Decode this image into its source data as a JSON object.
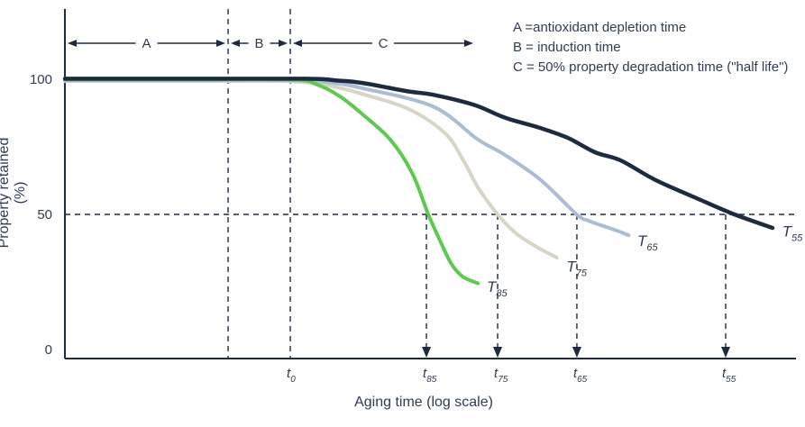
{
  "colors": {
    "ink": "#1d2b40",
    "text": "#2e3c55",
    "green": "#5ec94f",
    "beige": "#d9d5c6",
    "blue": "#aabdd5",
    "background": "#ffffff"
  },
  "chart": {
    "type": "line",
    "title": "",
    "xlabel": "Aging time (log scale)",
    "ylabel": "Property retained (%)",
    "x_scale": "log (qualitative, unlabeled)",
    "ylim": [
      0,
      110
    ],
    "grid": "off",
    "half_life_pct": 50,
    "y_ticks": [
      {
        "label": "100",
        "pct": 100
      },
      {
        "label": "50",
        "pct": 50
      },
      {
        "label": "0",
        "pct": 0
      }
    ],
    "x_ticks": [
      {
        "base": "t",
        "sub": "0",
        "x": 0.3083,
        "drop_arrow": false
      },
      {
        "base": "t",
        "sub": "85",
        "x": 0.4945,
        "drop_arrow": true
      },
      {
        "base": "t",
        "sub": "75",
        "x": 0.5919,
        "drop_arrow": true
      },
      {
        "base": "t",
        "sub": "65",
        "x": 0.7003,
        "drop_arrow": true
      },
      {
        "base": "t",
        "sub": "55",
        "x": 0.9038,
        "drop_arrow": true
      }
    ],
    "dividers": [
      0.2232,
      0.3083
    ],
    "regions": [
      {
        "label": "A",
        "from": 0.0,
        "to": 0.2232
      },
      {
        "label": "B",
        "from": 0.2232,
        "to": 0.3083
      },
      {
        "label": "C",
        "from": 0.3083,
        "to": 0.5622
      }
    ],
    "annotations": [
      "A =antioxidant depletion time",
      "B = induction time",
      "C = 50% property degradation time (\"half life\")"
    ],
    "series": [
      {
        "name": "T75",
        "base": "T",
        "sub": "75",
        "color": "#d9d5c6",
        "label_x": 0.686,
        "label_pct": 30.5,
        "points": [
          [
            0,
            99.3
          ],
          [
            0.16,
            99.3
          ],
          [
            0.3,
            99.3
          ],
          [
            0.345,
            98.3
          ],
          [
            0.376,
            96.8
          ],
          [
            0.405,
            94.7
          ],
          [
            0.47,
            89.0
          ],
          [
            0.52,
            80.0
          ],
          [
            0.545,
            70.0
          ],
          [
            0.565,
            60.0
          ],
          [
            0.592,
            50.0
          ],
          [
            0.617,
            43.0
          ],
          [
            0.645,
            38.0
          ],
          [
            0.673,
            34.0
          ]
        ]
      },
      {
        "name": "T65",
        "base": "T",
        "sub": "65",
        "color": "#aabdd5",
        "label_x": 0.783,
        "label_pct": 40.0,
        "points": [
          [
            0,
            99.6
          ],
          [
            0.16,
            99.6
          ],
          [
            0.315,
            99.6
          ],
          [
            0.37,
            98.5
          ],
          [
            0.405,
            96.8
          ],
          [
            0.503,
            90.0
          ],
          [
            0.565,
            77.7
          ],
          [
            0.602,
            72.0
          ],
          [
            0.651,
            62.7
          ],
          [
            0.7,
            50.0
          ],
          [
            0.715,
            47.8
          ],
          [
            0.73,
            46.3
          ],
          [
            0.755,
            44.0
          ],
          [
            0.771,
            42.3
          ]
        ]
      },
      {
        "name": "T85",
        "base": "T",
        "sub": "85",
        "color": "#5ec94f",
        "label_x": 0.577,
        "label_pct": 23.0,
        "points": [
          [
            0,
            99.9
          ],
          [
            0.16,
            99.9
          ],
          [
            0.31,
            99.9
          ],
          [
            0.345,
            98.0
          ],
          [
            0.376,
            93.7
          ],
          [
            0.405,
            87.5
          ],
          [
            0.445,
            77.7
          ],
          [
            0.475,
            65.3
          ],
          [
            0.497,
            50.0
          ],
          [
            0.512,
            41.0
          ],
          [
            0.528,
            32.0
          ],
          [
            0.544,
            27.0
          ],
          [
            0.565,
            24.5
          ]
        ]
      },
      {
        "name": "T55",
        "base": "T",
        "sub": "55",
        "color": "#1d2b40",
        "width": 4.5,
        "label_x": 0.981,
        "label_pct": 43.5,
        "points": [
          [
            0,
            100.2
          ],
          [
            0.16,
            100.2
          ],
          [
            0.33,
            100.2
          ],
          [
            0.37,
            99.6
          ],
          [
            0.405,
            98.7
          ],
          [
            0.47,
            95.5
          ],
          [
            0.503,
            94.3
          ],
          [
            0.56,
            90.5
          ],
          [
            0.602,
            85.8
          ],
          [
            0.65,
            82.0
          ],
          [
            0.688,
            78.3
          ],
          [
            0.725,
            73.0
          ],
          [
            0.76,
            70.0
          ],
          [
            0.808,
            62.7
          ],
          [
            0.864,
            56.0
          ],
          [
            0.913,
            50.3
          ],
          [
            0.968,
            45.0
          ]
        ]
      }
    ]
  }
}
